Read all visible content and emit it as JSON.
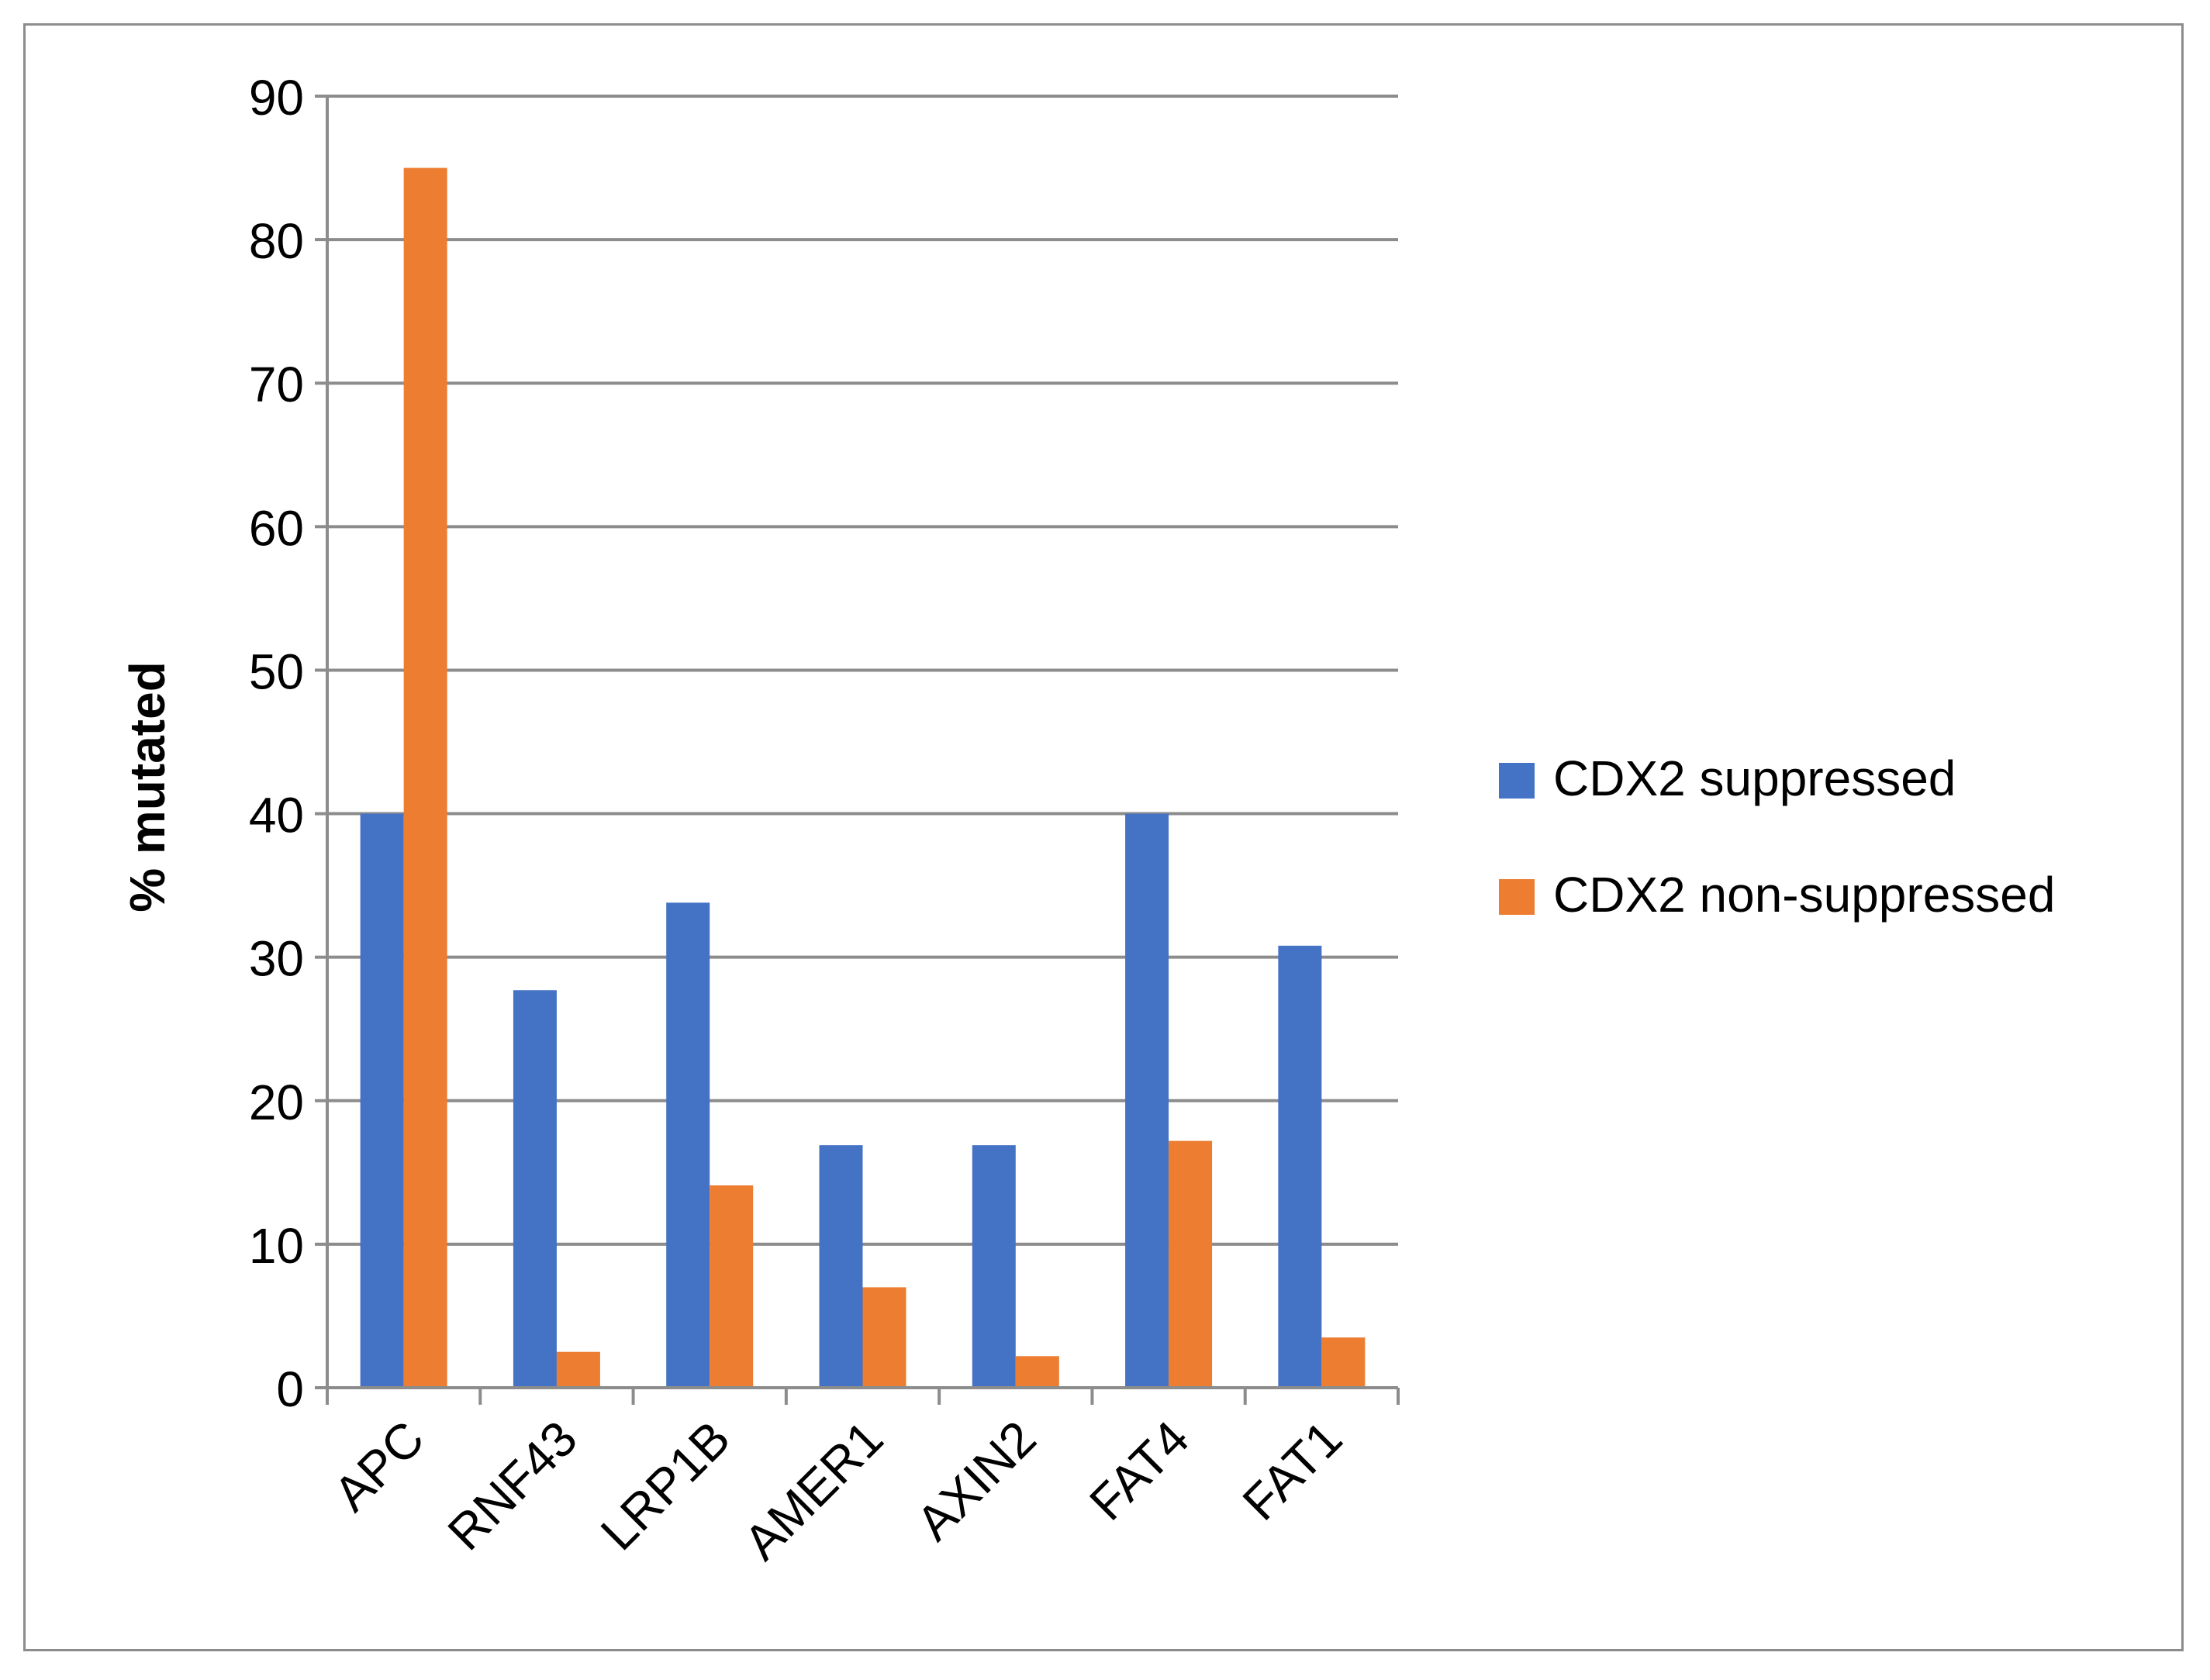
{
  "chart_data": {
    "type": "bar",
    "title": "",
    "xlabel": "",
    "ylabel": "% mutated",
    "ylim": [
      0,
      90
    ],
    "yticks": [
      0,
      10,
      20,
      30,
      40,
      50,
      60,
      70,
      80,
      90
    ],
    "categories": [
      "APC",
      "RNF43",
      "LRP1B",
      "AMER1",
      "AXIN2",
      "FAT4",
      "FAT1"
    ],
    "series": [
      {
        "name": "CDX2 suppressed",
        "color": "#4472c4",
        "values": [
          40,
          27.7,
          33.8,
          16.9,
          16.9,
          40,
          30.8
        ]
      },
      {
        "name": "CDX2 non-suppressed",
        "color": "#ed7d31",
        "values": [
          85,
          2.5,
          14.1,
          7.0,
          2.2,
          17.2,
          3.5
        ]
      }
    ],
    "grid": true,
    "legend": "right"
  }
}
